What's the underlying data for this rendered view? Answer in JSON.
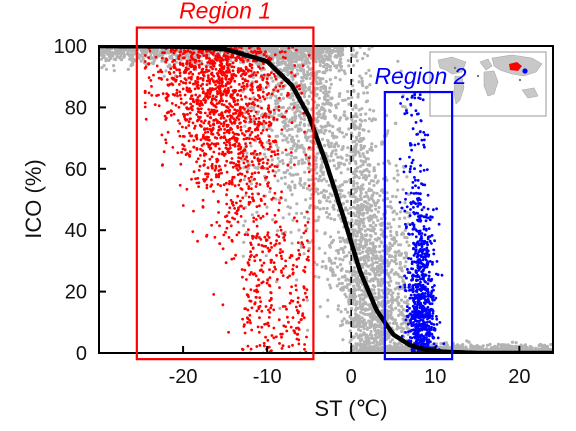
{
  "chart_data": {
    "type": "scatter",
    "title": "",
    "xlabel": "ST (℃)",
    "ylabel": "ICO (%)",
    "xlim": [
      -30,
      24
    ],
    "ylim": [
      0,
      100
    ],
    "xticks": [
      -20,
      -10,
      0,
      10,
      20
    ],
    "yticks": [
      0,
      20,
      40,
      60,
      80,
      100
    ],
    "grid": false,
    "threshold_line_x": 0,
    "fit_curve": {
      "type": "logistic",
      "description": "Logistic fit, ~100 at cold ST, ~0 at warm ST, midpoint near ST = -1",
      "x": [
        -30,
        -20,
        -15,
        -10,
        -7,
        -5,
        -3,
        -1,
        0,
        1,
        3,
        5,
        7,
        9,
        11,
        15,
        24
      ],
      "y": [
        100,
        99.8,
        99,
        95,
        87,
        77,
        62,
        45,
        36,
        27,
        14,
        6,
        2.5,
        1,
        0.4,
        0,
        0
      ]
    },
    "series": [
      {
        "color": "#b3b3b3",
        "x_range": [
          -30,
          24
        ],
        "y_range": [
          0,
          100
        ]
      },
      {
        "color": "#ff0000",
        "x_range": [
          -25,
          -5
        ],
        "y_range": [
          0,
          100
        ]
      },
      {
        "color": "#0000ff",
        "x_range": [
          5,
          11
        ],
        "y_range": [
          0,
          86
        ]
      }
    ],
    "regions": [
      {
        "label": "Region 1",
        "color": "#ff0000",
        "x": [
          -25.5,
          -4.5
        ],
        "y": [
          -2,
          106
        ]
      },
      {
        "label": "Region 2",
        "color": "#0000ff",
        "x": [
          4,
          12
        ],
        "y": [
          -2,
          85
        ]
      }
    ],
    "inset": {
      "content": "world map",
      "icon": "world-map-icon",
      "highlight_colors": [
        "#ff0000",
        "#0000ff"
      ]
    }
  }
}
